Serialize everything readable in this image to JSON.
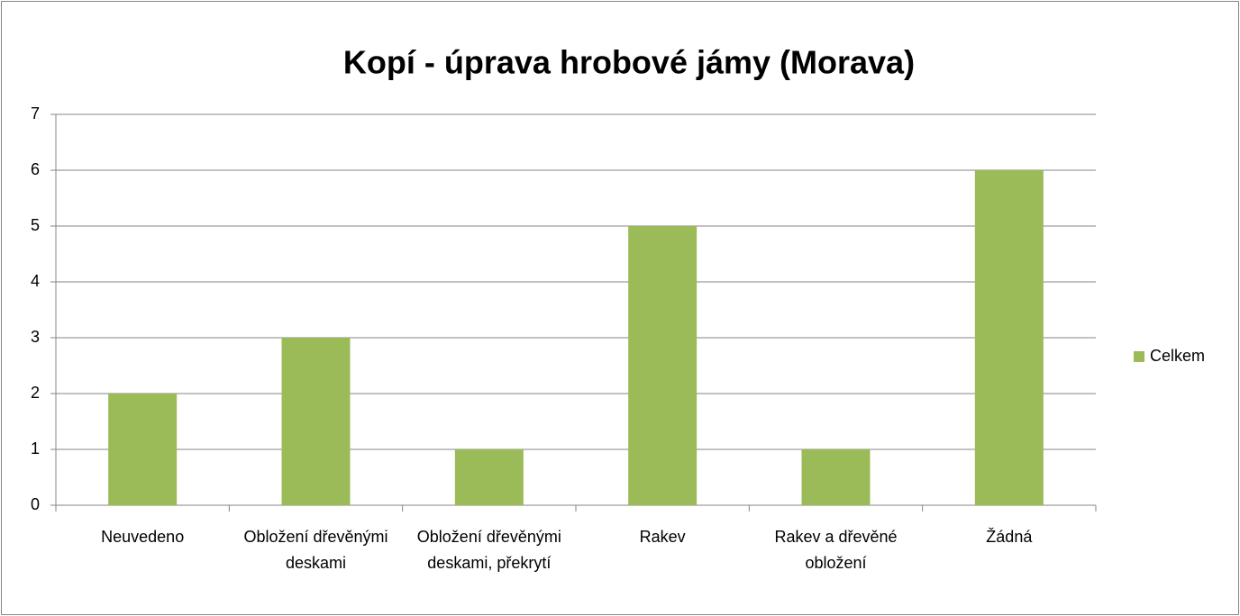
{
  "chart_data": {
    "type": "bar",
    "title": "Kopí - úprava hrobové jámy (Morava)",
    "categories": [
      "Neuvedeno",
      "Obložení dřevěnými deskami",
      "Obložení dřevěnými deskami, překrytí",
      "Rakev",
      "Rakev a dřevěné obložení",
      "Žádná"
    ],
    "series": [
      {
        "name": "Celkem",
        "color": "#9bbb59",
        "values": [
          2,
          3,
          1,
          5,
          1,
          6
        ]
      }
    ],
    "ylim": [
      0,
      7
    ],
    "yticks": [
      0,
      1,
      2,
      3,
      4,
      5,
      6,
      7
    ],
    "grid": true,
    "legend": "right"
  }
}
